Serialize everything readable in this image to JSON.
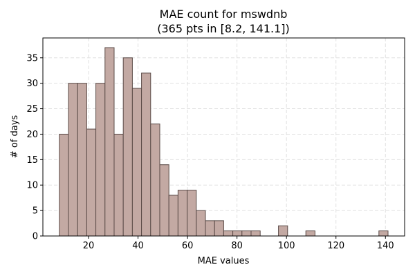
{
  "chart_data": {
    "type": "bar",
    "title_line1": "MAE count for mswdnb",
    "title_line2": "(365 pts in [8.2, 141.1])",
    "xlabel": "MAE values",
    "ylabel": "# of days",
    "xlim": [
      1.55,
      147.75
    ],
    "ylim": [
      0,
      38.9
    ],
    "xticks": [
      20,
      40,
      60,
      80,
      100,
      120,
      140
    ],
    "yticks": [
      0,
      5,
      10,
      15,
      20,
      25,
      30,
      35
    ],
    "grid": true,
    "bin_width": 3.69,
    "bins": [
      {
        "x0": 8.2,
        "count": 20
      },
      {
        "x0": 11.89,
        "count": 30
      },
      {
        "x0": 15.58,
        "count": 30
      },
      {
        "x0": 19.27,
        "count": 21
      },
      {
        "x0": 22.96,
        "count": 30
      },
      {
        "x0": 26.65,
        "count": 37
      },
      {
        "x0": 30.34,
        "count": 20
      },
      {
        "x0": 34.03,
        "count": 35
      },
      {
        "x0": 37.72,
        "count": 29
      },
      {
        "x0": 41.41,
        "count": 32
      },
      {
        "x0": 45.1,
        "count": 22
      },
      {
        "x0": 48.79,
        "count": 14
      },
      {
        "x0": 52.48,
        "count": 8
      },
      {
        "x0": 56.17,
        "count": 9
      },
      {
        "x0": 59.86,
        "count": 9
      },
      {
        "x0": 63.55,
        "count": 5
      },
      {
        "x0": 67.24,
        "count": 3
      },
      {
        "x0": 70.93,
        "count": 3
      },
      {
        "x0": 74.62,
        "count": 1
      },
      {
        "x0": 78.31,
        "count": 1
      },
      {
        "x0": 82.0,
        "count": 1
      },
      {
        "x0": 85.69,
        "count": 1
      },
      {
        "x0": 96.76,
        "count": 2
      },
      {
        "x0": 107.83,
        "count": 1
      },
      {
        "x0": 137.35,
        "count": 1
      }
    ]
  }
}
